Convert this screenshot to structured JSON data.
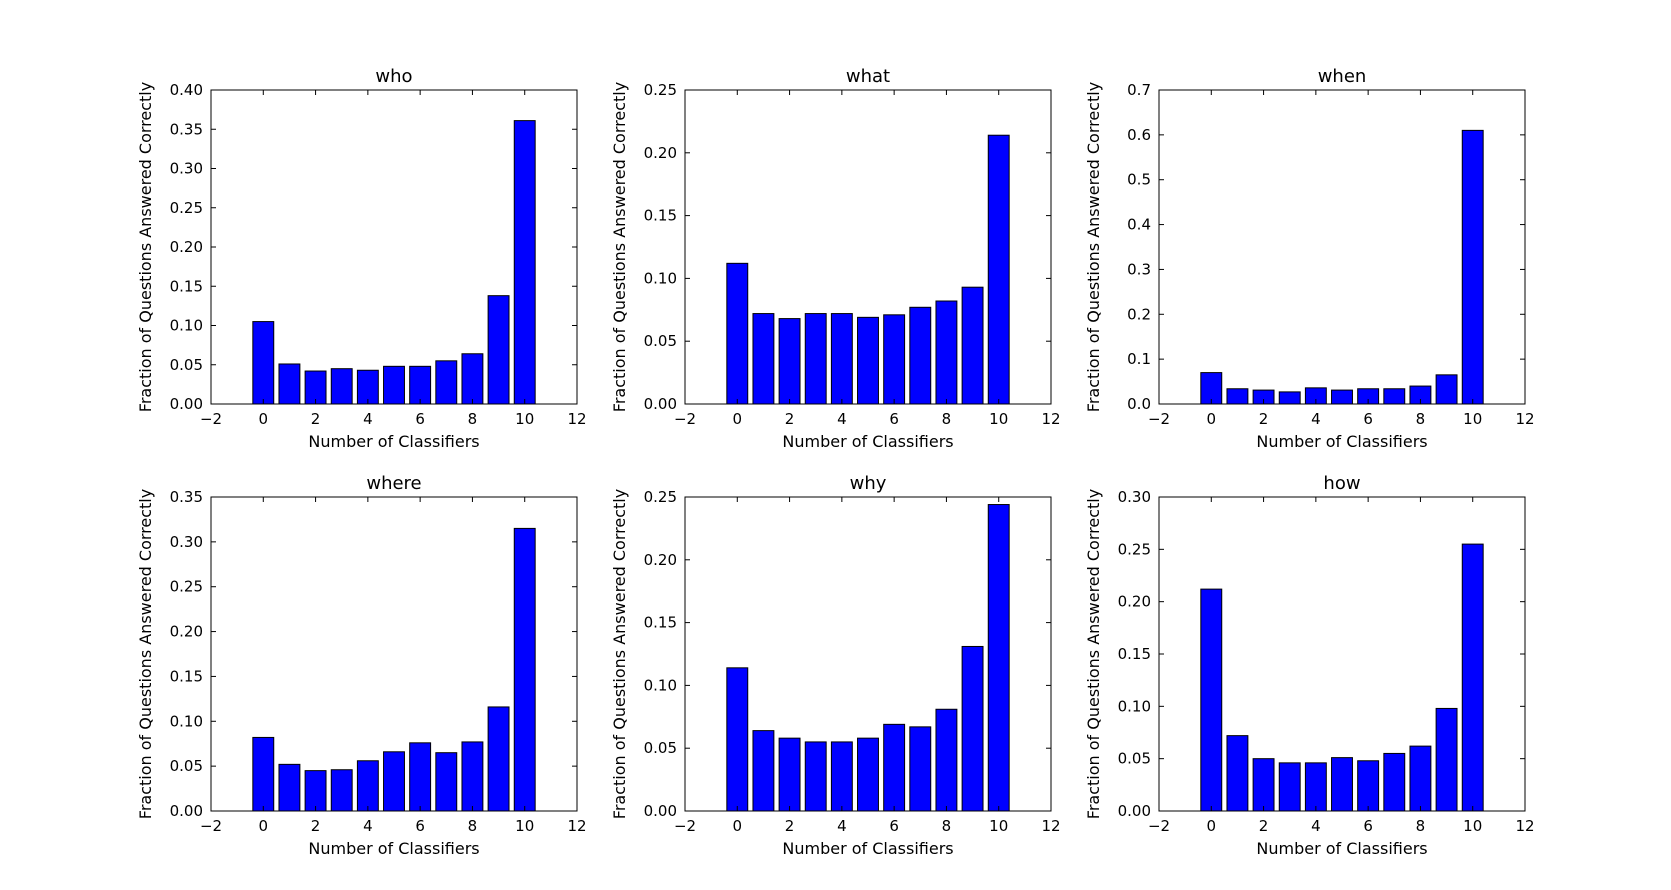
{
  "colors": {
    "bar": "#0000ff",
    "edge": "#000000",
    "background": "#ffffff"
  },
  "chart_data": [
    {
      "type": "bar",
      "title": "who",
      "xlabel": "Number of Classifiers",
      "ylabel": "Fraction of Questions Answered Correctly",
      "x": [
        0,
        1,
        2,
        3,
        4,
        5,
        6,
        7,
        8,
        9,
        10
      ],
      "values": [
        0.105,
        0.051,
        0.042,
        0.045,
        0.043,
        0.048,
        0.048,
        0.055,
        0.064,
        0.138,
        0.361
      ],
      "xlim": [
        -2,
        12
      ],
      "ylim": [
        0,
        0.4
      ],
      "xticks": [
        "−2",
        "0",
        "2",
        "4",
        "6",
        "8",
        "10",
        "12"
      ],
      "yticks": [
        "0.00",
        "0.05",
        "0.10",
        "0.15",
        "0.20",
        "0.25",
        "0.30",
        "0.35",
        "0.40"
      ]
    },
    {
      "type": "bar",
      "title": "what",
      "xlabel": "Number of Classifiers",
      "ylabel": "Fraction of Questions Answered Correctly",
      "x": [
        0,
        1,
        2,
        3,
        4,
        5,
        6,
        7,
        8,
        9,
        10
      ],
      "values": [
        0.112,
        0.072,
        0.068,
        0.072,
        0.072,
        0.069,
        0.071,
        0.077,
        0.082,
        0.093,
        0.214
      ],
      "xlim": [
        -2,
        12
      ],
      "ylim": [
        0,
        0.25
      ],
      "xticks": [
        "−2",
        "0",
        "2",
        "4",
        "6",
        "8",
        "10",
        "12"
      ],
      "yticks": [
        "0.00",
        "0.05",
        "0.10",
        "0.15",
        "0.20",
        "0.25"
      ]
    },
    {
      "type": "bar",
      "title": "when",
      "xlabel": "Number of Classifiers",
      "ylabel": "Fraction of Questions Answered Correctly",
      "x": [
        0,
        1,
        2,
        3,
        4,
        5,
        6,
        7,
        8,
        9,
        10
      ],
      "values": [
        0.07,
        0.034,
        0.031,
        0.027,
        0.036,
        0.031,
        0.034,
        0.034,
        0.04,
        0.065,
        0.61
      ],
      "xlim": [
        -2,
        12
      ],
      "ylim": [
        0,
        0.7
      ],
      "xticks": [
        "−2",
        "0",
        "2",
        "4",
        "6",
        "8",
        "10",
        "12"
      ],
      "yticks": [
        "0.0",
        "0.1",
        "0.2",
        "0.3",
        "0.4",
        "0.5",
        "0.6",
        "0.7"
      ]
    },
    {
      "type": "bar",
      "title": "where",
      "xlabel": "Number of Classifiers",
      "ylabel": "Fraction of Questions Answered Correctly",
      "x": [
        0,
        1,
        2,
        3,
        4,
        5,
        6,
        7,
        8,
        9,
        10
      ],
      "values": [
        0.082,
        0.052,
        0.045,
        0.046,
        0.056,
        0.066,
        0.076,
        0.065,
        0.077,
        0.116,
        0.315
      ],
      "xlim": [
        -2,
        12
      ],
      "ylim": [
        0,
        0.35
      ],
      "xticks": [
        "−2",
        "0",
        "2",
        "4",
        "6",
        "8",
        "10",
        "12"
      ],
      "yticks": [
        "0.00",
        "0.05",
        "0.10",
        "0.15",
        "0.20",
        "0.25",
        "0.30",
        "0.35"
      ]
    },
    {
      "type": "bar",
      "title": "why",
      "xlabel": "Number of Classifiers",
      "ylabel": "Fraction of Questions Answered Correctly",
      "x": [
        0,
        1,
        2,
        3,
        4,
        5,
        6,
        7,
        8,
        9,
        10
      ],
      "values": [
        0.114,
        0.064,
        0.058,
        0.055,
        0.055,
        0.058,
        0.069,
        0.067,
        0.081,
        0.131,
        0.244
      ],
      "xlim": [
        -2,
        12
      ],
      "ylim": [
        0,
        0.25
      ],
      "xticks": [
        "−2",
        "0",
        "2",
        "4",
        "6",
        "8",
        "10",
        "12"
      ],
      "yticks": [
        "0.00",
        "0.05",
        "0.10",
        "0.15",
        "0.20",
        "0.25"
      ]
    },
    {
      "type": "bar",
      "title": "how",
      "xlabel": "Number of Classifiers",
      "ylabel": "Fraction of Questions Answered Correctly",
      "x": [
        0,
        1,
        2,
        3,
        4,
        5,
        6,
        7,
        8,
        9,
        10
      ],
      "values": [
        0.212,
        0.072,
        0.05,
        0.046,
        0.046,
        0.051,
        0.048,
        0.055,
        0.062,
        0.098,
        0.255
      ],
      "xlim": [
        -2,
        12
      ],
      "ylim": [
        0,
        0.3
      ],
      "xticks": [
        "−2",
        "0",
        "2",
        "4",
        "6",
        "8",
        "10",
        "12"
      ],
      "yticks": [
        "0.00",
        "0.05",
        "0.10",
        "0.15",
        "0.20",
        "0.25",
        "0.30"
      ]
    }
  ]
}
